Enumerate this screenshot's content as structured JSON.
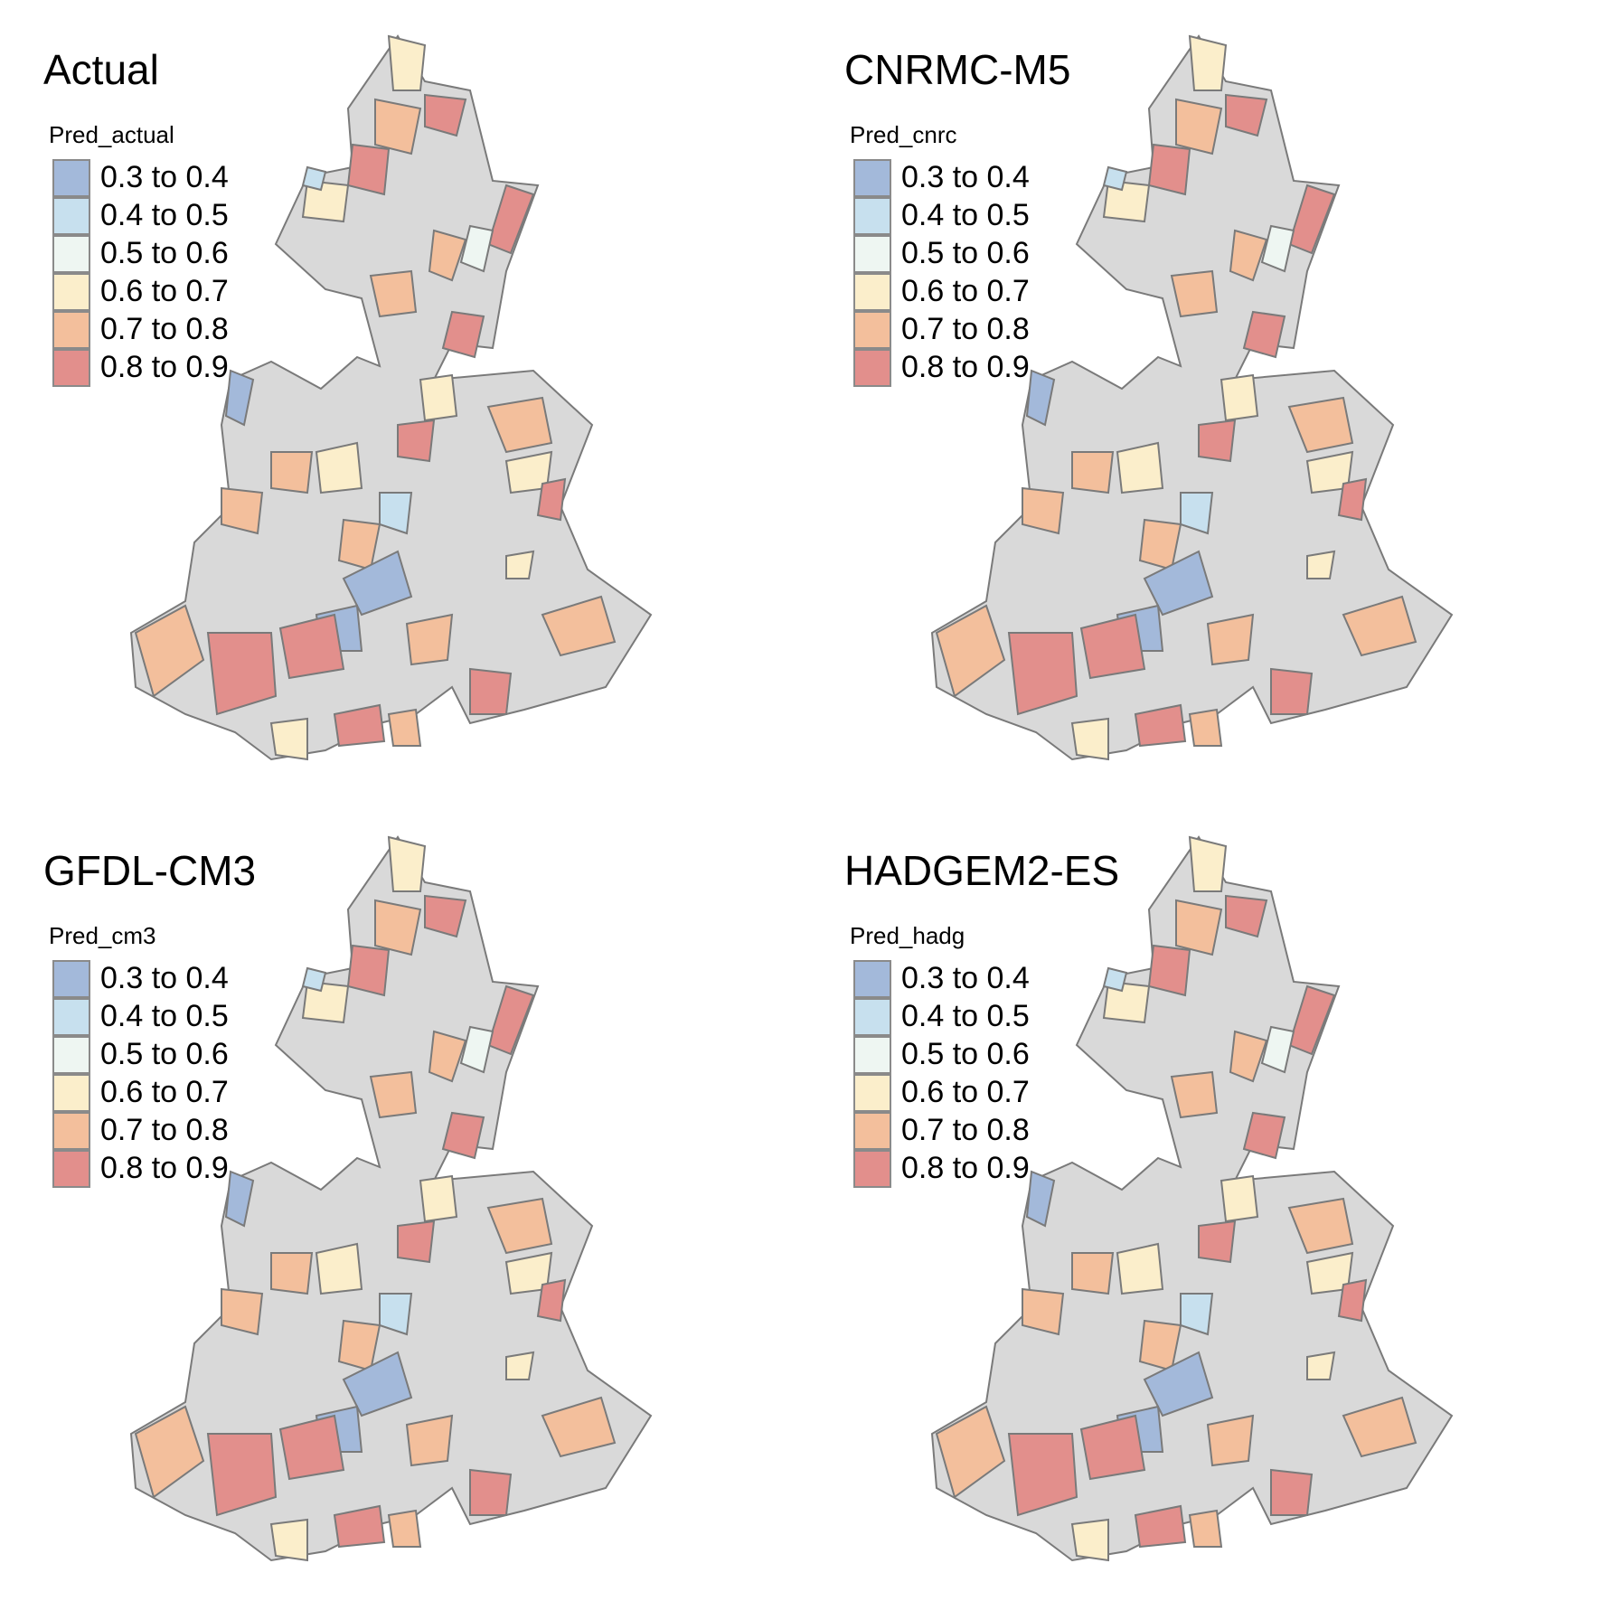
{
  "legend_classes": [
    {
      "label": "0.3 to 0.4",
      "color": "#a3b9da"
    },
    {
      "label": "0.4 to 0.5",
      "color": "#c7e0ee"
    },
    {
      "label": "0.5 to 0.6",
      "color": "#eef6f2"
    },
    {
      "label": "0.6 to 0.7",
      "color": "#fbeecb"
    },
    {
      "label": "0.7 to 0.8",
      "color": "#f3bf9c"
    },
    {
      "label": "0.8 to 0.9",
      "color": "#e28f8c"
    }
  ],
  "colors": {
    "no_data": "#d9d9d9",
    "region_border": "#7a7a7a"
  },
  "panels": [
    {
      "title": "Actual",
      "legend_title": "Pred_actual"
    },
    {
      "title": "CNRMC-M5",
      "legend_title": "Pred_cnrc"
    },
    {
      "title": "GFDL-CM3",
      "legend_title": "Pred_cm3"
    },
    {
      "title": "HADGEM2-ES",
      "legend_title": "Pred_hadg"
    }
  ]
}
